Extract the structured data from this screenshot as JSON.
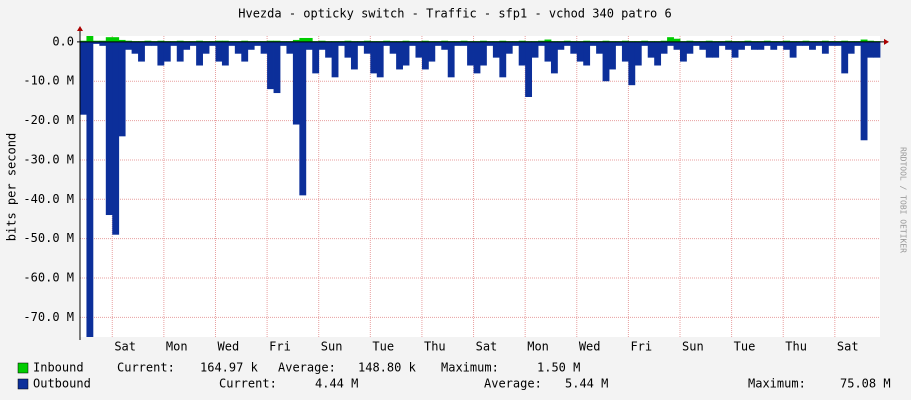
{
  "chart_data": {
    "type": "bar",
    "title": "Hvezda - opticky switch - Traffic - sfp1 - vchod 340 patro 6",
    "y_label": "bits per second",
    "watermark": "RRDTOOL / TOBI OETIKER",
    "ylim": [
      -75,
      1.5
    ],
    "yticks": [
      {
        "value": 0,
        "label": "0.0"
      },
      {
        "value": -10,
        "label": "-10.0 M"
      },
      {
        "value": -20,
        "label": "-20.0 M"
      },
      {
        "value": -30,
        "label": "-30.0 M"
      },
      {
        "value": -40,
        "label": "-40.0 M"
      },
      {
        "value": -50,
        "label": "-50.0 M"
      },
      {
        "value": -60,
        "label": "-60.0 M"
      },
      {
        "value": -70,
        "label": "-70.0 M"
      }
    ],
    "xlim": [
      0,
      124
    ],
    "xticks": [
      {
        "value": 5,
        "label": "Sat"
      },
      {
        "value": 13,
        "label": "Mon"
      },
      {
        "value": 21,
        "label": "Wed"
      },
      {
        "value": 29,
        "label": "Fri"
      },
      {
        "value": 37,
        "label": "Sun"
      },
      {
        "value": 45,
        "label": "Tue"
      },
      {
        "value": 53,
        "label": "Thu"
      },
      {
        "value": 61,
        "label": "Sat"
      },
      {
        "value": 69,
        "label": "Mon"
      },
      {
        "value": 77,
        "label": "Wed"
      },
      {
        "value": 85,
        "label": "Fri"
      },
      {
        "value": 93,
        "label": "Sun"
      },
      {
        "value": 101,
        "label": "Tue"
      },
      {
        "value": 109,
        "label": "Thu"
      },
      {
        "value": 117,
        "label": "Sat"
      }
    ],
    "grid": true,
    "series": [
      {
        "name": "Inbound",
        "color": "#00cc00",
        "stats": [
          {
            "label": "Current:",
            "value": "164.97 k"
          },
          {
            "label": "Average:",
            "value": "148.80 k"
          },
          {
            "label": "Maximum:",
            "value": "1.50 M"
          }
        ],
        "values": [
          0.3,
          1.5,
          0.3,
          0.3,
          1.2,
          1.2,
          0.5,
          0.3,
          0.2,
          0.2,
          0.3,
          0.2,
          0.3,
          0.2,
          0.2,
          0.3,
          0.2,
          0.2,
          0.3,
          0.2,
          0.2,
          0.3,
          0.3,
          0.2,
          0.2,
          0.3,
          0.2,
          0.2,
          0.2,
          0.3,
          0.3,
          0.2,
          0.2,
          0.5,
          1.0,
          1.0,
          0.2,
          0.3,
          0.2,
          0.2,
          0.2,
          0.3,
          0.2,
          0.2,
          0.3,
          0.2,
          0.2,
          0.3,
          0.2,
          0.2,
          0.3,
          0.2,
          0.2,
          0.3,
          0.2,
          0.2,
          0.3,
          0.2,
          0.2,
          0.3,
          0.2,
          0.2,
          0.3,
          0.2,
          0.2,
          0.3,
          0.2,
          0.2,
          0.3,
          0.2,
          0.2,
          0.3,
          0.6,
          0.2,
          0.2,
          0.3,
          0.2,
          0.2,
          0.3,
          0.2,
          0.2,
          0.3,
          0.2,
          0.2,
          0.3,
          0.2,
          0.2,
          0.3,
          0.2,
          0.2,
          0.3,
          1.2,
          0.8,
          0.2,
          0.3,
          0.2,
          0.2,
          0.3,
          0.2,
          0.2,
          0.3,
          0.2,
          0.2,
          0.3,
          0.2,
          0.2,
          0.3,
          0.2,
          0.2,
          0.3,
          0.2,
          0.2,
          0.3,
          0.2,
          0.2,
          0.3,
          0.2,
          0.2,
          0.3,
          0.2,
          0.2,
          0.6,
          0.3,
          0.2
        ]
      },
      {
        "name": "Outbound",
        "color": "#0c2f9a",
        "stats": [
          {
            "label": "Current:",
            "value": "4.44 M"
          },
          {
            "label": "Average:",
            "value": "5.44 M"
          },
          {
            "label": "Maximum:",
            "value": "75.08 M"
          }
        ],
        "values": [
          -18.5,
          -75,
          -0.5,
          -1,
          -44,
          -49,
          -24,
          -2,
          -3,
          -5,
          -1,
          -1,
          -6,
          -5,
          -1,
          -5,
          -2,
          -1,
          -6,
          -3,
          -1,
          -5,
          -6,
          -1,
          -3,
          -5,
          -2,
          -1,
          -3,
          -12,
          -13,
          -1,
          -3,
          -21,
          -39,
          -2,
          -8,
          -2,
          -4,
          -9,
          -1,
          -4,
          -7,
          -1,
          -3,
          -8,
          -9,
          -1,
          -3,
          -7,
          -6,
          -1,
          -4,
          -7,
          -5,
          -1,
          -2,
          -9,
          -1,
          -1,
          -6,
          -8,
          -6,
          -1,
          -4,
          -9,
          -3,
          -1,
          -6,
          -14,
          -4,
          -1,
          -5,
          -8,
          -2,
          -1,
          -3,
          -5,
          -6,
          -1,
          -3,
          -10,
          -7,
          -1,
          -5,
          -11,
          -6,
          -1,
          -4,
          -6,
          -3,
          -1,
          -2,
          -5,
          -3,
          -1,
          -2,
          -4,
          -4,
          -1,
          -2,
          -4,
          -2,
          -1,
          -2,
          -2,
          -1,
          -2,
          -1,
          -2,
          -4,
          -1,
          -1,
          -2,
          -1,
          -3,
          -1,
          -1,
          -8,
          -3,
          -1,
          -25,
          -4,
          -4
        ]
      }
    ]
  }
}
